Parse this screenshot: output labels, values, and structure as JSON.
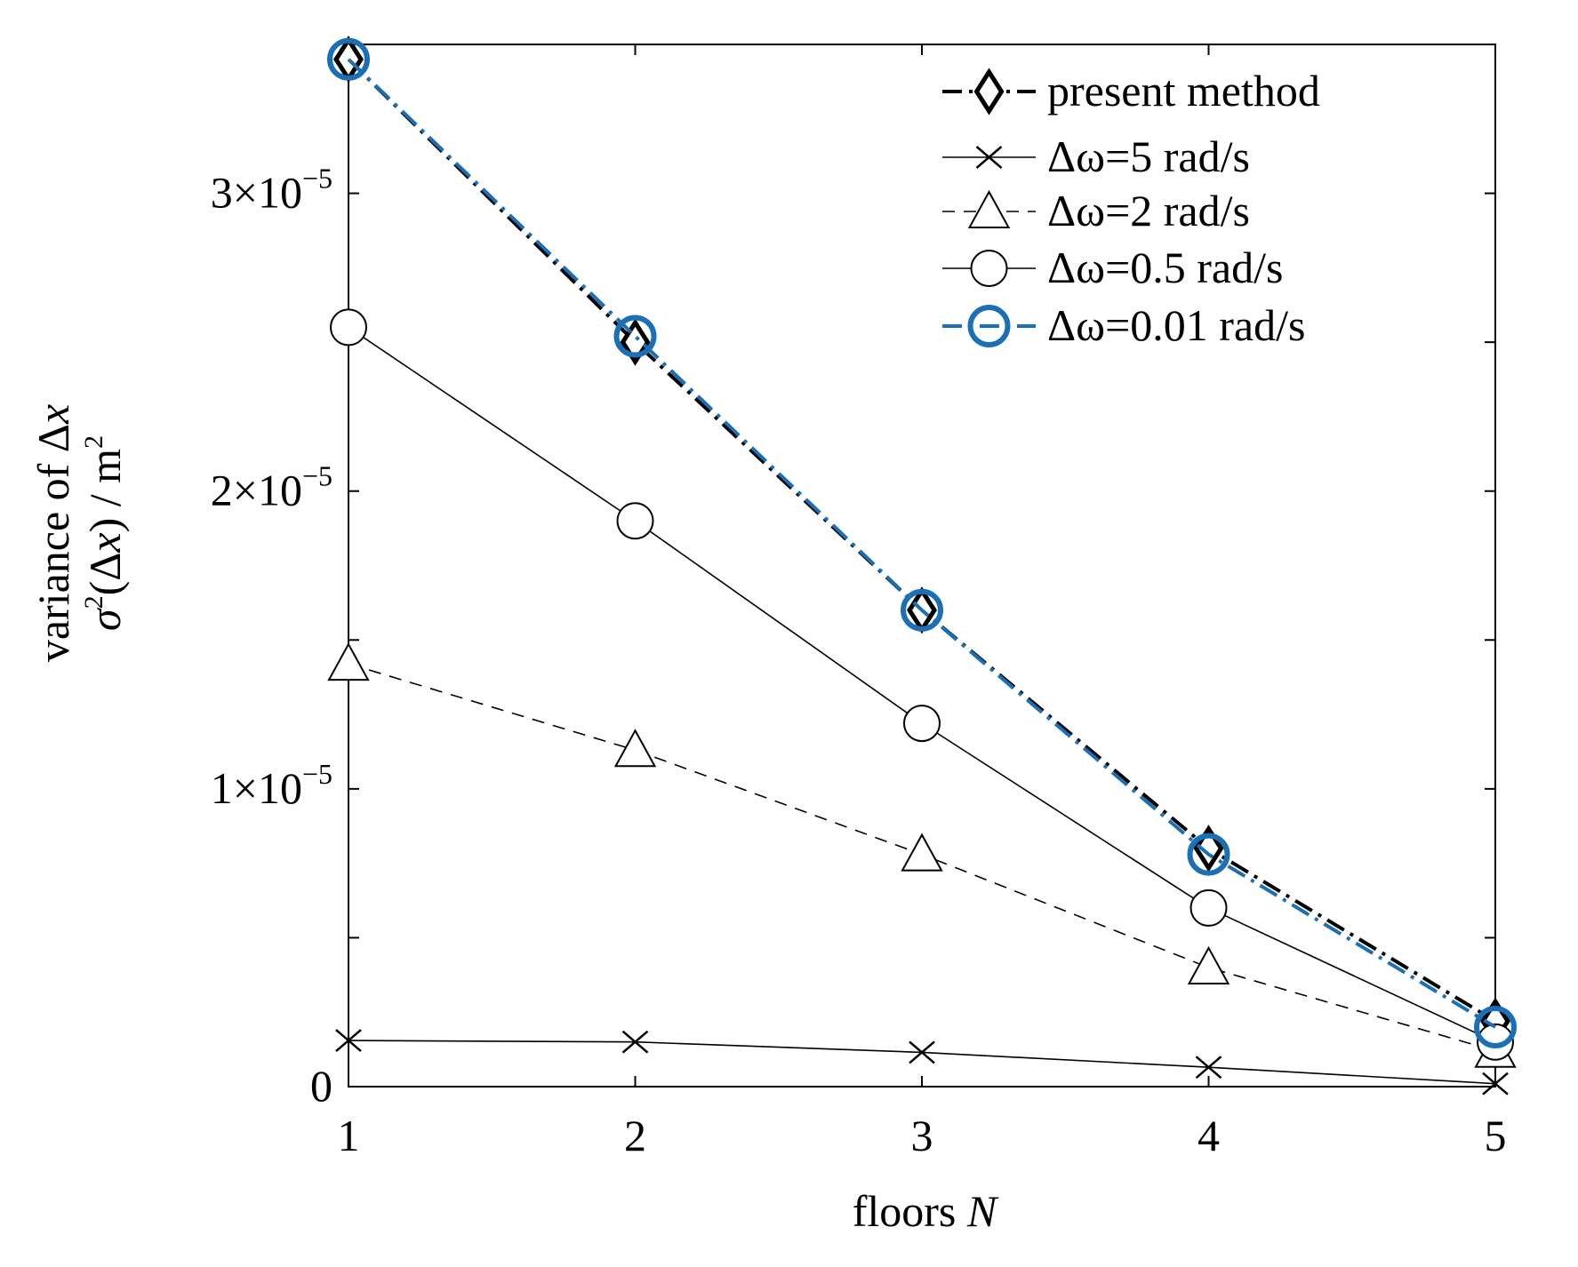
{
  "chart_data": {
    "type": "line",
    "title": "",
    "xlabel": "floors",
    "xlabel_var": "N",
    "ylabel_line1_text": "variance of Δ",
    "ylabel_line1_var": "x",
    "ylabel_line2_sigma": "σ",
    "ylabel_line2_sup": "2",
    "ylabel_line2_paren_open": "(Δ",
    "ylabel_line2_var": "x",
    "ylabel_line2_rest": ") / m",
    "ylabel_line2_sup2": "2",
    "x": [
      1,
      2,
      3,
      4,
      5
    ],
    "xlim": [
      1,
      5
    ],
    "ylim": [
      0,
      3.5e-05
    ],
    "x_ticks": [
      "1",
      "2",
      "3",
      "4",
      "5"
    ],
    "y_ticks": [
      {
        "value": 0,
        "mantissa": "0",
        "exp": ""
      },
      {
        "value": 1e-05,
        "mantissa": "1×10",
        "exp": "−5"
      },
      {
        "value": 2e-05,
        "mantissa": "2×10",
        "exp": "−5"
      },
      {
        "value": 3e-05,
        "mantissa": "3×10",
        "exp": "−5"
      }
    ],
    "y_minor_ticks": [
      5e-06,
      1.5e-05,
      2.5e-05
    ],
    "grid": false,
    "legend_position": "top-right",
    "series": [
      {
        "name": "present method",
        "values": [
          3.45e-05,
          2.5e-05,
          1.6e-05,
          8e-06,
          2.2e-06
        ],
        "color": "#000000",
        "marker": "diamond",
        "dash": "dashdot"
      },
      {
        "name": "Δω=5 rad/s",
        "values": [
          1.55e-06,
          1.5e-06,
          1.15e-06,
          6.5e-07,
          1e-07
        ],
        "color": "#000000",
        "marker": "x",
        "dash": "solid"
      },
      {
        "name": "Δω=2 rad/s",
        "values": [
          1.42e-05,
          1.13e-05,
          7.8e-06,
          4e-06,
          1.2e-06
        ],
        "color": "#000000",
        "marker": "triangle",
        "dash": "dashed"
      },
      {
        "name": "Δω=0.5 rad/s",
        "values": [
          2.55e-05,
          1.9e-05,
          1.22e-05,
          6e-06,
          1.5e-06
        ],
        "color": "#000000",
        "marker": "circle",
        "dash": "solid"
      },
      {
        "name": "Δω=0.01 rad/s",
        "values": [
          3.45e-05,
          2.52e-05,
          1.6e-05,
          7.8e-06,
          2e-06
        ],
        "color": "#1a6fb5",
        "marker": "circle-bold",
        "dash": "dashdot"
      }
    ]
  }
}
